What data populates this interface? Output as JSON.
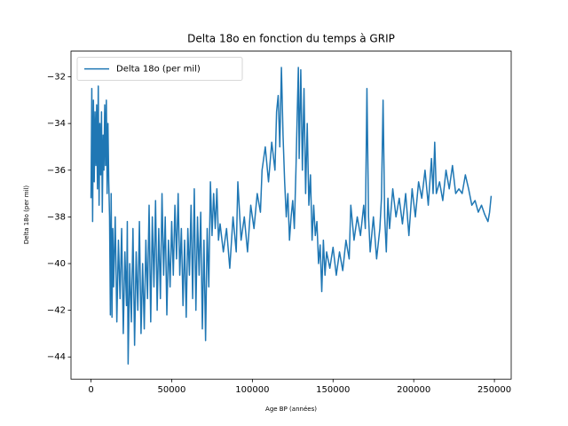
{
  "chart_data": {
    "type": "line",
    "title": "Delta 18o en fonction du temps à GRIP",
    "xlabel": "Age BP (années)",
    "ylabel": "Delta 18o (per mil)",
    "legend": "upper left",
    "xlim": [
      -12400,
      260400
    ],
    "ylim": [
      -44.95,
      -30.9
    ],
    "xticks": [
      0,
      50000,
      100000,
      150000,
      200000,
      250000
    ],
    "yticks": [
      {
        "value": -44,
        "label": "−44"
      },
      {
        "value": -42,
        "label": "−42"
      },
      {
        "value": -40,
        "label": "−40"
      },
      {
        "value": -38,
        "label": "−38"
      },
      {
        "value": -36,
        "label": "−36"
      },
      {
        "value": -34,
        "label": "−34"
      },
      {
        "value": -32,
        "label": "−32"
      }
    ],
    "x": [
      0,
      500,
      1000,
      1500,
      2000,
      2500,
      3000,
      3500,
      4000,
      4500,
      5000,
      5500,
      6000,
      6500,
      7000,
      7500,
      8000,
      8500,
      9000,
      9500,
      10000,
      10500,
      11000,
      11500,
      12000,
      12500,
      13000,
      13500,
      14000,
      15000,
      16000,
      17000,
      18000,
      19000,
      20000,
      21000,
      22000,
      22500,
      23000,
      24000,
      25000,
      26000,
      27000,
      28000,
      29000,
      30000,
      31000,
      32000,
      33000,
      34000,
      35000,
      36000,
      37000,
      38000,
      39000,
      40000,
      41000,
      42000,
      43000,
      44000,
      45000,
      46000,
      47000,
      48000,
      49000,
      50000,
      51000,
      52000,
      53000,
      54000,
      55000,
      56000,
      57000,
      58000,
      59000,
      60000,
      61000,
      62000,
      63000,
      64000,
      65000,
      66000,
      67000,
      68000,
      69000,
      70000,
      71000,
      72000,
      73000,
      74000,
      75000,
      76000,
      77000,
      78000,
      79000,
      80000,
      82000,
      84000,
      86000,
      88000,
      90000,
      91000,
      93000,
      95000,
      97000,
      99000,
      101000,
      103000,
      105000,
      106000,
      108000,
      110000,
      112000,
      114000,
      115000,
      116000,
      117000,
      118000,
      119000,
      120000,
      121000,
      122000,
      123000,
      124000,
      125000,
      126000,
      127000,
      128000,
      128500,
      129000,
      130000,
      131000,
      132000,
      133000,
      134000,
      135000,
      136000,
      137000,
      138000,
      139000,
      140000,
      141000,
      142000,
      143000,
      144000,
      145000,
      146000,
      148000,
      150000,
      152000,
      154000,
      156000,
      158000,
      160000,
      161000,
      163000,
      165000,
      167000,
      169000,
      170000,
      171000,
      172000,
      173000,
      175000,
      177000,
      179000,
      180000,
      181000,
      182000,
      183000,
      184000,
      185000,
      187000,
      189000,
      191000,
      193000,
      195000,
      197000,
      199000,
      201000,
      203000,
      205000,
      207000,
      209000,
      211000,
      212000,
      213000,
      214000,
      216000,
      218000,
      220000,
      222000,
      224000,
      226000,
      228000,
      230000,
      232000,
      234000,
      236000,
      238000,
      240000,
      242000,
      244000,
      246000,
      247000,
      248000
    ],
    "series": [
      {
        "name": "Delta 18o (per mil)",
        "color": "#1f77b4",
        "values": [
          -37.2,
          -32.5,
          -38.2,
          -33,
          -36.5,
          -33.5,
          -35.8,
          -33.2,
          -36.8,
          -32.4,
          -37.5,
          -34,
          -36.2,
          -33.5,
          -37.8,
          -34.5,
          -36,
          -33.2,
          -35.8,
          -33,
          -37,
          -34,
          -36.5,
          -38,
          -42.2,
          -37,
          -42.3,
          -38.5,
          -41,
          -38,
          -42.5,
          -39,
          -41.5,
          -38.5,
          -43,
          -39.5,
          -41.8,
          -38.2,
          -44.3,
          -40,
          -42.5,
          -38.5,
          -43.5,
          -39.5,
          -42,
          -38.2,
          -43,
          -40,
          -42.8,
          -39,
          -41.5,
          -37.5,
          -42.5,
          -38,
          -41,
          -37.3,
          -42,
          -38.5,
          -41.5,
          -37,
          -40.5,
          -38,
          -42.2,
          -39,
          -41,
          -38.2,
          -40.5,
          -37.5,
          -39.8,
          -37,
          -40.5,
          -38.5,
          -41.8,
          -39,
          -42.3,
          -38.5,
          -40.5,
          -37.5,
          -41.5,
          -36.8,
          -42,
          -38,
          -40.5,
          -37.8,
          -42.8,
          -39,
          -43.3,
          -38.5,
          -41,
          -36.5,
          -38.8,
          -37,
          -38.5,
          -36.8,
          -39,
          -38.3,
          -39.5,
          -38.5,
          -40.2,
          -38,
          -39.5,
          -36.5,
          -39,
          -38,
          -39.5,
          -37.5,
          -38.5,
          -37,
          -37.8,
          -36,
          -35,
          -36.5,
          -34.8,
          -36,
          -33.5,
          -32.8,
          -35,
          -31.6,
          -34.5,
          -36.5,
          -38,
          -37,
          -39,
          -38,
          -37.3,
          -38.5,
          -36,
          -33,
          -31.6,
          -35.5,
          -31.7,
          -36,
          -32.5,
          -37,
          -34,
          -37.5,
          -36.2,
          -39,
          -37.5,
          -38.8,
          -38.2,
          -40,
          -39.2,
          -41.2,
          -39,
          -40.5,
          -39.5,
          -40.2,
          -39.3,
          -40.5,
          -39.5,
          -40.3,
          -39,
          -39.8,
          -37.5,
          -39,
          -38,
          -38.8,
          -37.5,
          -38.5,
          -32.5,
          -38,
          -39.5,
          -38,
          -39.8,
          -38.5,
          -37.2,
          -33,
          -38,
          -39.5,
          -37.2,
          -38.5,
          -36.8,
          -38,
          -37.2,
          -38.3,
          -37,
          -38.8,
          -36.8,
          -38,
          -36.5,
          -37.2,
          -36,
          -37.5,
          -35.5,
          -37,
          -34.8,
          -37,
          -36.5,
          -37.3,
          -36,
          -36.8,
          -35.8,
          -37,
          -36.8,
          -37,
          -36.2,
          -36.8,
          -37.5,
          -37.3,
          -37.8,
          -37.5,
          -37.9,
          -38.2,
          -37.8,
          -37.1
        ]
      }
    ]
  }
}
